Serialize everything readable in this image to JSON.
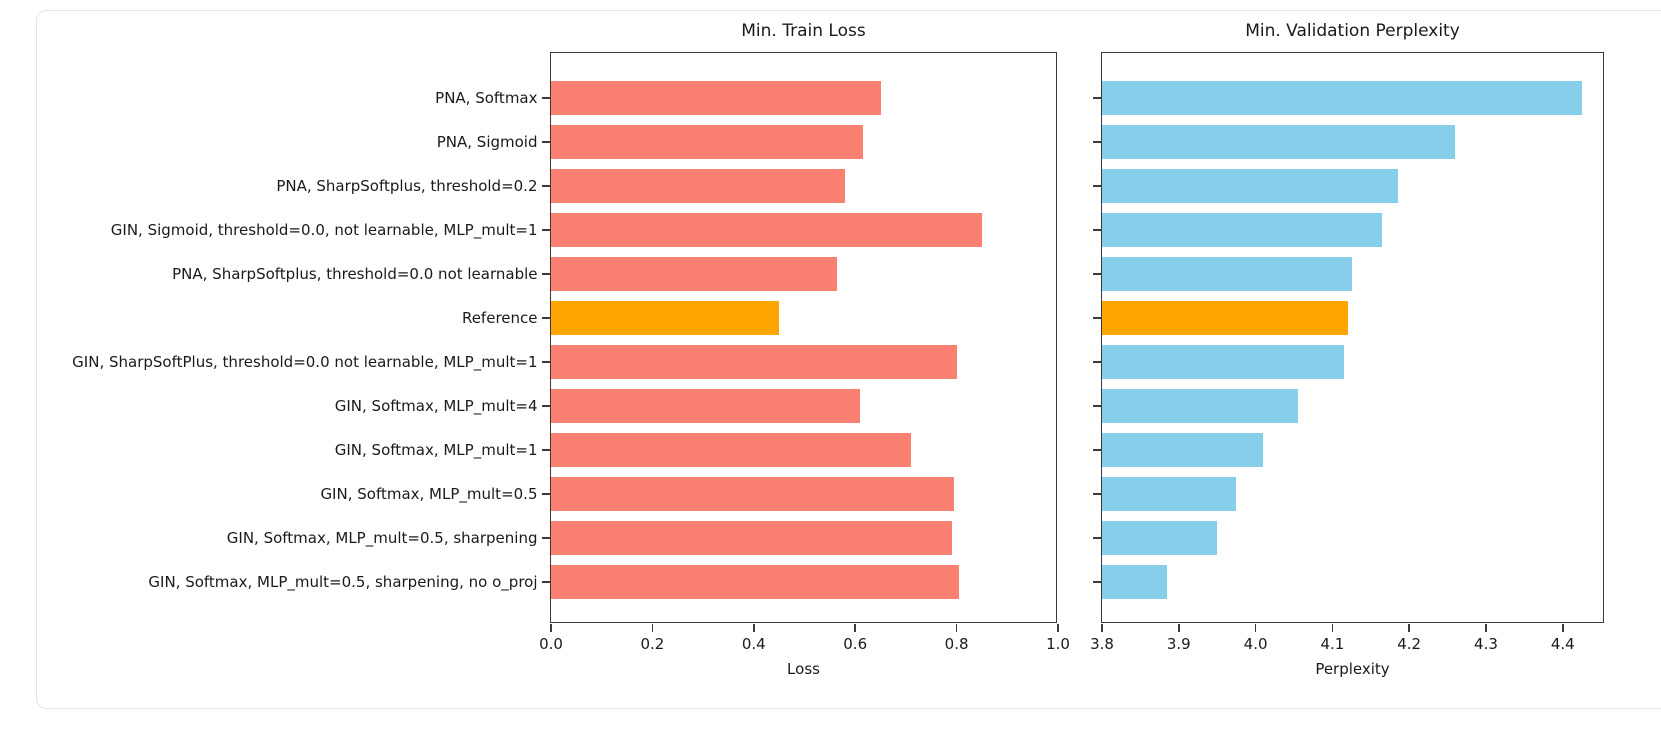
{
  "figure": {
    "background": "#ffffff",
    "panel_border_color": "#e4e4e4",
    "spine_color": "#3a3a3a",
    "text_color": "#1a1a1a"
  },
  "chart_data": [
    {
      "type": "bar",
      "orientation": "horizontal",
      "title": "Min. Train Loss",
      "xlabel": "Loss",
      "categories": [
        "PNA, Softmax",
        "PNA, Sigmoid",
        "PNA, SharpSoftplus, threshold=0.2",
        "GIN, Sigmoid, threshold=0.0, not learnable, MLP_mult=1",
        "PNA, SharpSoftplus, threshold=0.0 not learnable",
        "Reference",
        "GIN, SharpSoftPlus, threshold=0.0 not learnable, MLP_mult=1",
        "GIN, Softmax, MLP_mult=4",
        "GIN, Softmax, MLP_mult=1",
        "GIN, Softmax, MLP_mult=0.5",
        "GIN, Softmax, MLP_mult=0.5, sharpening",
        "GIN, Softmax, MLP_mult=0.5, sharpening, no o_proj"
      ],
      "values": [
        0.65,
        0.615,
        0.58,
        0.85,
        0.565,
        0.45,
        0.8,
        0.61,
        0.71,
        0.795,
        0.79,
        0.805
      ],
      "bar_color": "#FA8072",
      "highlight": {
        "index": 5,
        "color": "#FFA500",
        "label": "Reference"
      },
      "xlim": [
        0.0,
        1.0
      ],
      "xticks": [
        "0.0",
        "0.2",
        "0.4",
        "0.6",
        "0.8",
        "1.0"
      ],
      "show_category_labels": true,
      "grid": false,
      "legend": null
    },
    {
      "type": "bar",
      "orientation": "horizontal",
      "title": "Min. Validation Perplexity",
      "xlabel": "Perplexity",
      "categories": [
        "PNA, Softmax",
        "PNA, Sigmoid",
        "PNA, SharpSoftplus, threshold=0.2",
        "GIN, Sigmoid, threshold=0.0, not learnable, MLP_mult=1",
        "PNA, SharpSoftplus, threshold=0.0 not learnable",
        "Reference",
        "GIN, SharpSoftPlus, threshold=0.0 not learnable, MLP_mult=1",
        "GIN, Softmax, MLP_mult=4",
        "GIN, Softmax, MLP_mult=1",
        "GIN, Softmax, MLP_mult=0.5",
        "GIN, Softmax, MLP_mult=0.5, sharpening",
        "GIN, Softmax, MLP_mult=0.5, sharpening, no o_proj"
      ],
      "values": [
        4.425,
        4.26,
        4.185,
        4.165,
        4.125,
        4.12,
        4.115,
        4.055,
        4.01,
        3.975,
        3.95,
        3.885
      ],
      "bar_color": "#87CEEB",
      "highlight": {
        "index": 5,
        "color": "#FFA500",
        "label": "Reference"
      },
      "xlim": [
        3.8,
        4.455
      ],
      "xticks": [
        "3.8",
        "3.9",
        "4.0",
        "4.1",
        "4.2",
        "4.3",
        "4.4"
      ],
      "show_category_labels": false,
      "grid": false,
      "legend": null
    }
  ]
}
